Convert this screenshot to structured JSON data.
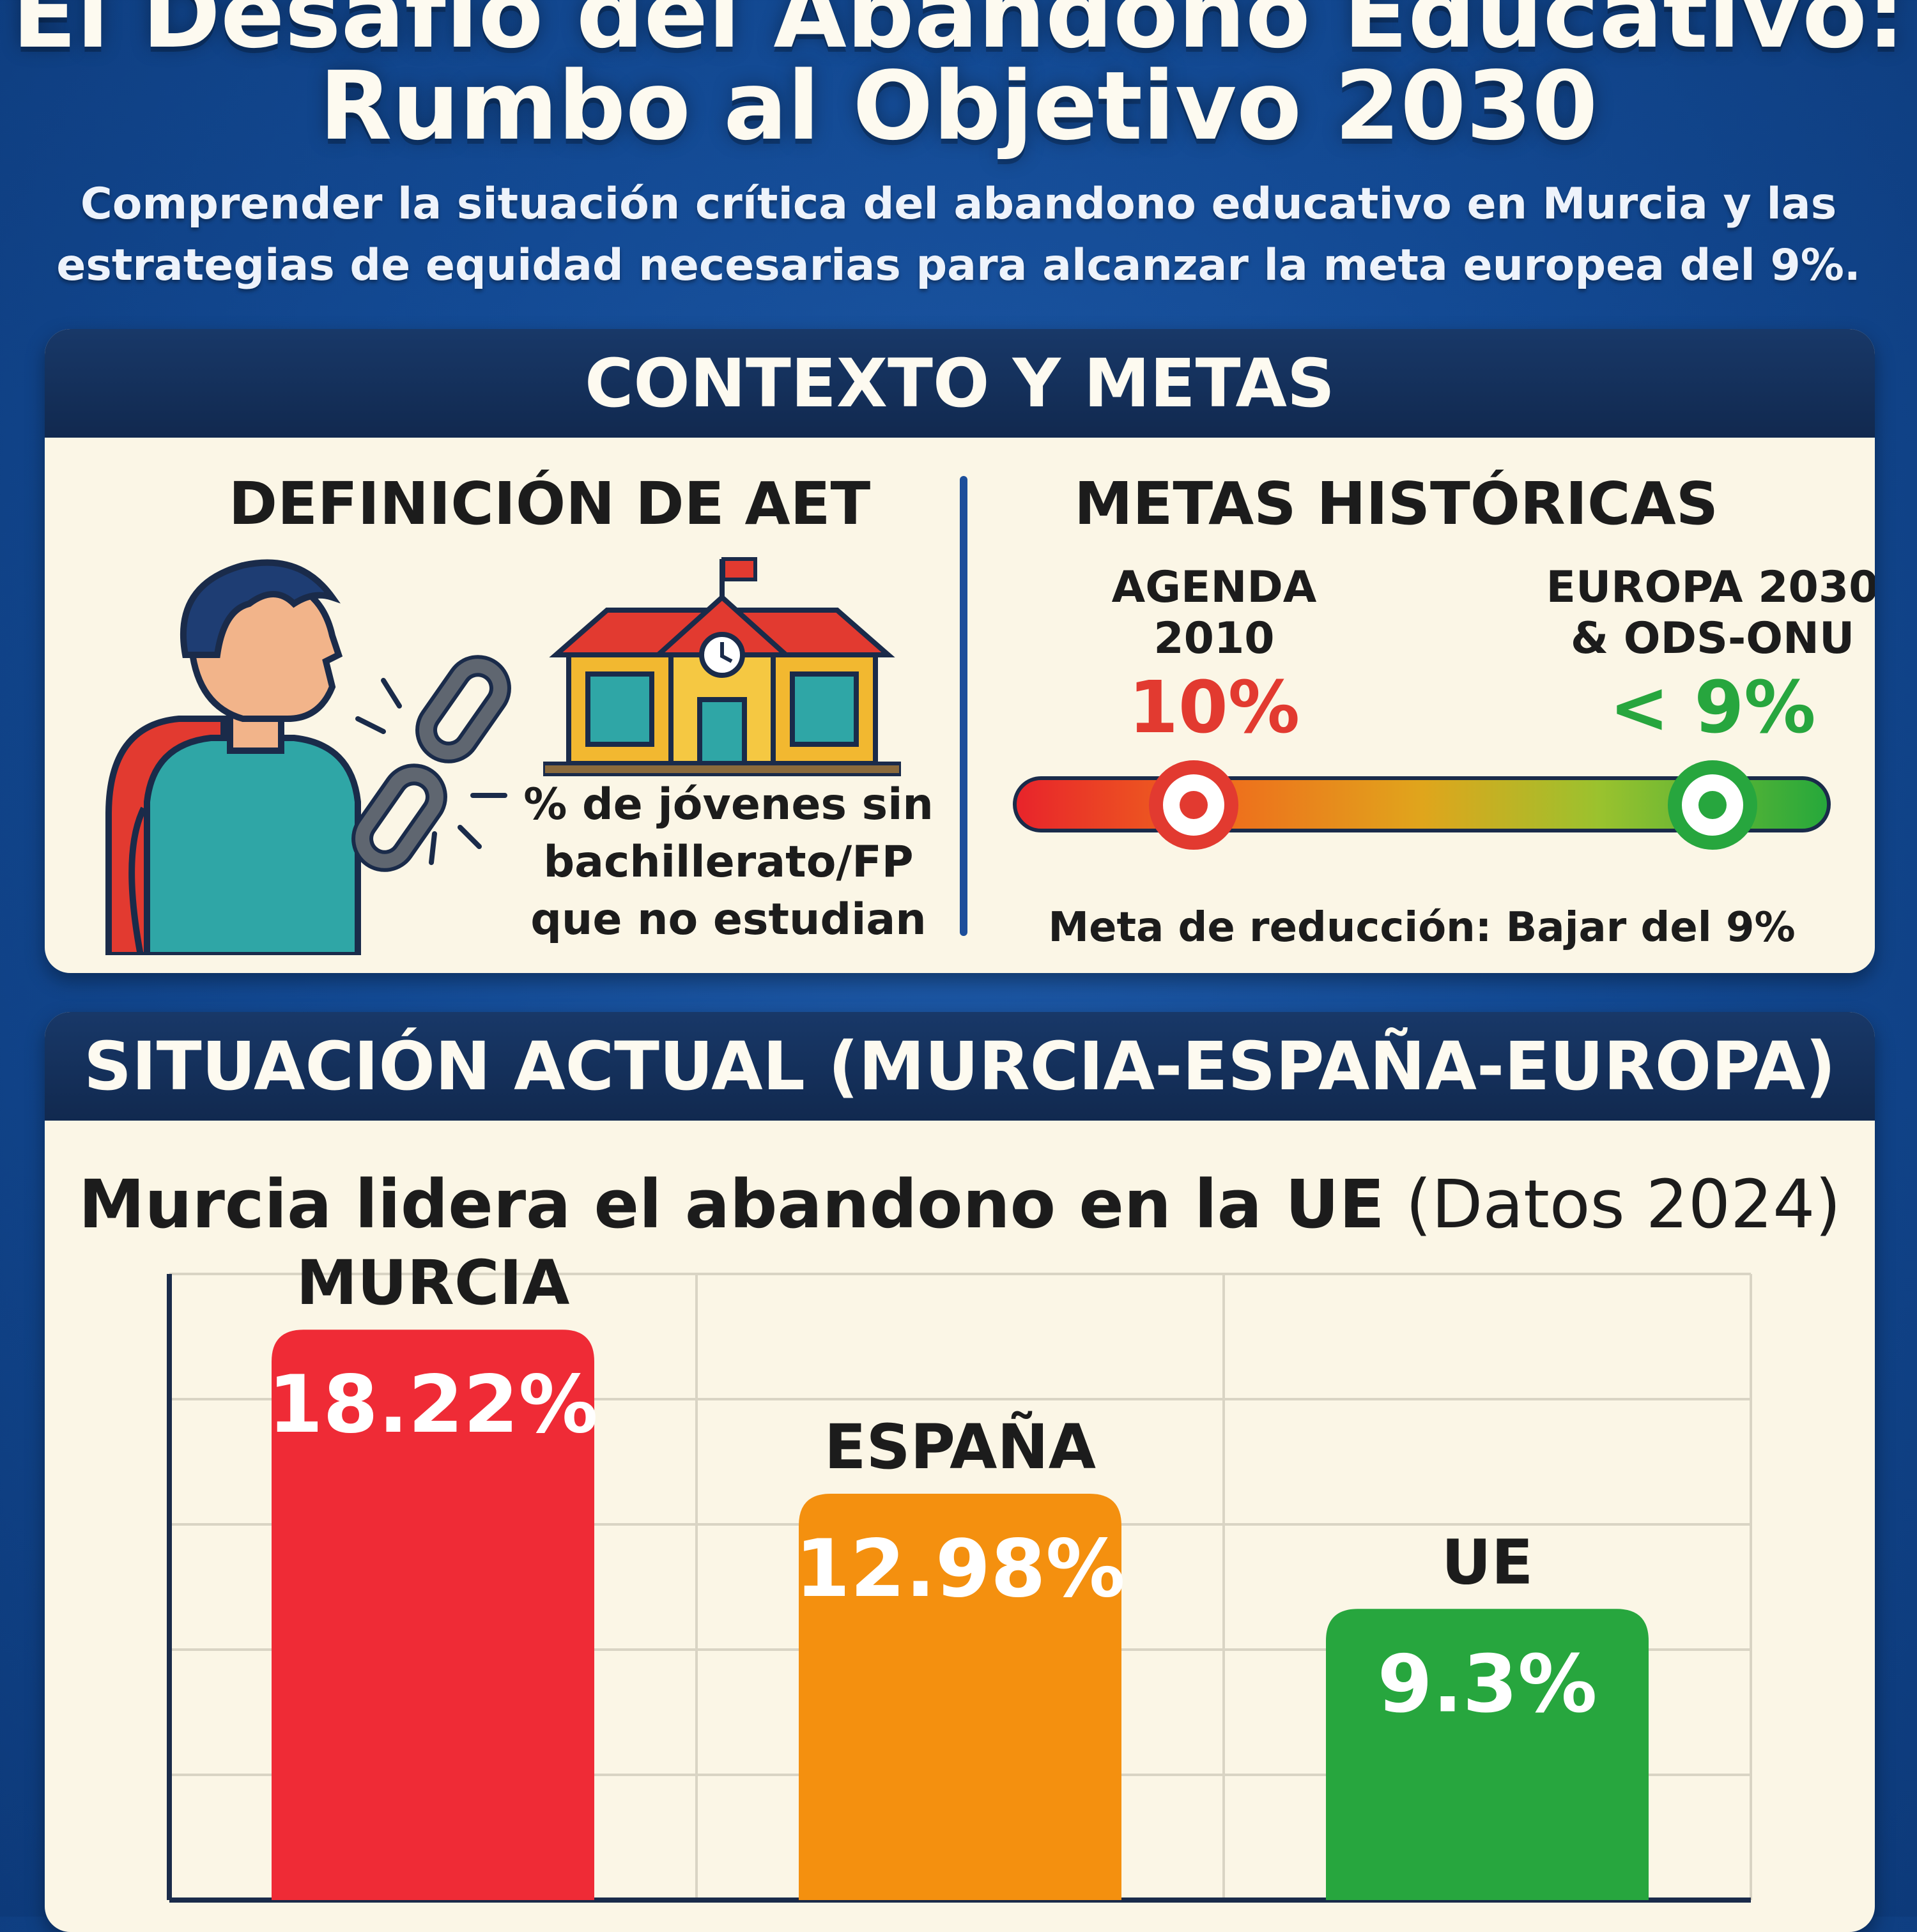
{
  "title_line1": "El Desafío del Abandono Educativo:",
  "title_line2": "Rumbo al Objetivo 2030",
  "subtitle_line1": "Comprender la situación crítica del abandono educativo en Murcia y las",
  "subtitle_line2": "estrategias de equidad necesarias para alcanzar la meta europea del 9%.",
  "context": {
    "header": "CONTEXTO Y METAS",
    "definition": {
      "title": "DEFINICIÓN DE AET",
      "text_l1": "% de jóvenes sin",
      "text_l2": "bachillerato/FP",
      "text_l3": "que no estudian"
    },
    "goals": {
      "title": "METAS HISTÓRICAS",
      "agenda_label_l1": "AGENDA",
      "agenda_label_l2": "2010",
      "agenda_value": "10%",
      "europe_label_l1": "EUROPA 2030",
      "europe_label_l2": "& ODS-ONU",
      "europe_value": "< 9%",
      "note": "Meta de reducción: Bajar del 9%"
    }
  },
  "situation": {
    "header": "SITUACIÓN ACTUAL (MURCIA-ESPAÑA-EUROPA)"
  },
  "colors": {
    "red": "#ef2b36",
    "orange": "#f4900f",
    "green": "#27a63e"
  },
  "chart_data": {
    "type": "bar",
    "title": "Murcia lidera el abandono en la UE",
    "title_suffix": "(Datos 2024)",
    "categories": [
      "MURCIA",
      "ESPAÑA",
      "UE"
    ],
    "values": [
      18.22,
      12.98,
      9.3
    ],
    "value_labels": [
      "18.22%",
      "12.98%",
      "9.3%"
    ],
    "ylim": [
      0,
      20
    ],
    "grid": true
  }
}
